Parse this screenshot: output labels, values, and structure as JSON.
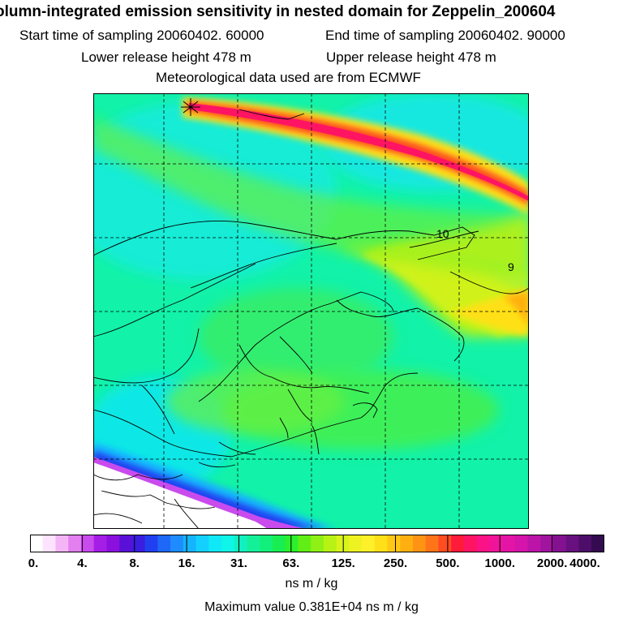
{
  "header": {
    "title": "olumn-integrated emission sensitivity in nested domain for Zeppelin_200604",
    "start_label": "Start time of sampling 20060402. 60000",
    "end_label": "End time of sampling 20060402. 90000",
    "lower_label": "Lower release height  478 m",
    "upper_label": "Upper release height  478 m",
    "met_label": "Meteorological data used are from ECMWF"
  },
  "map": {
    "contour_labels": [
      "10",
      "9"
    ],
    "release_marker": "star"
  },
  "colorbar": {
    "tick_labels": [
      "0.",
      "4.",
      "8.",
      "16.",
      "31.",
      "63.",
      "125.",
      "250.",
      "500.",
      "1000.",
      "2000.",
      "4000."
    ],
    "colors": [
      "#ffffff",
      "#fde3fd",
      "#f4b5f6",
      "#e47ff0",
      "#c94bee",
      "#a51ee6",
      "#8b10dd",
      "#5a10d8",
      "#3a1ee0",
      "#2040f0",
      "#1e68f8",
      "#1e8cff",
      "#14b4ff",
      "#14d0ff",
      "#10e8f8",
      "#0ff5e8",
      "#10f0c0",
      "#14f09a",
      "#12ef7a",
      "#18ee52",
      "#2cf02c",
      "#60ee14",
      "#8ef014",
      "#b8f214",
      "#d8f41a",
      "#eef222",
      "#fef02a",
      "#ffe018",
      "#ffc814",
      "#ffb010",
      "#ff9414",
      "#ff7418",
      "#ff4c20",
      "#ff1c3a",
      "#ff1464",
      "#fa1286",
      "#f0149a",
      "#e414a6",
      "#d414aa",
      "#bc14a8",
      "#a0149e",
      "#841290",
      "#681080",
      "#4c0e68",
      "#340a50"
    ],
    "units": "ns m / kg"
  },
  "footer": {
    "max_value": "Maximum value  0.381E+04 ns m / kg"
  }
}
